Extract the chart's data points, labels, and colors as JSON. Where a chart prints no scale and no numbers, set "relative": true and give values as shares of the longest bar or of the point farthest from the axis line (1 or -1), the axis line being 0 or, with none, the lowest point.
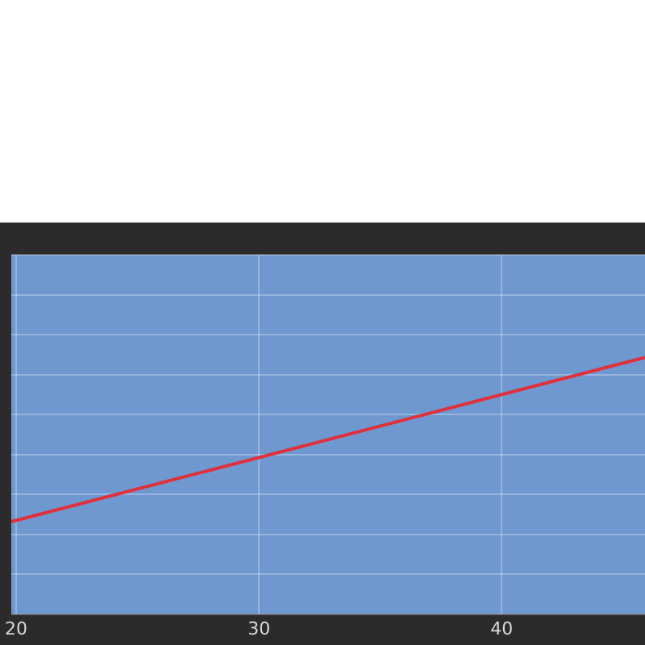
{
  "chart_data": {
    "type": "line",
    "relative": true,
    "x": [
      19.8,
      45.9
    ],
    "series": [
      {
        "color": "#e0303c",
        "values": [
          0.36,
          1
        ]
      }
    ],
    "xlim": [
      19.8,
      45.9
    ],
    "xticks": [
      20,
      30,
      40
    ],
    "grid": true,
    "legend": false,
    "marker": "none",
    "tick_labels": "x"
  }
}
